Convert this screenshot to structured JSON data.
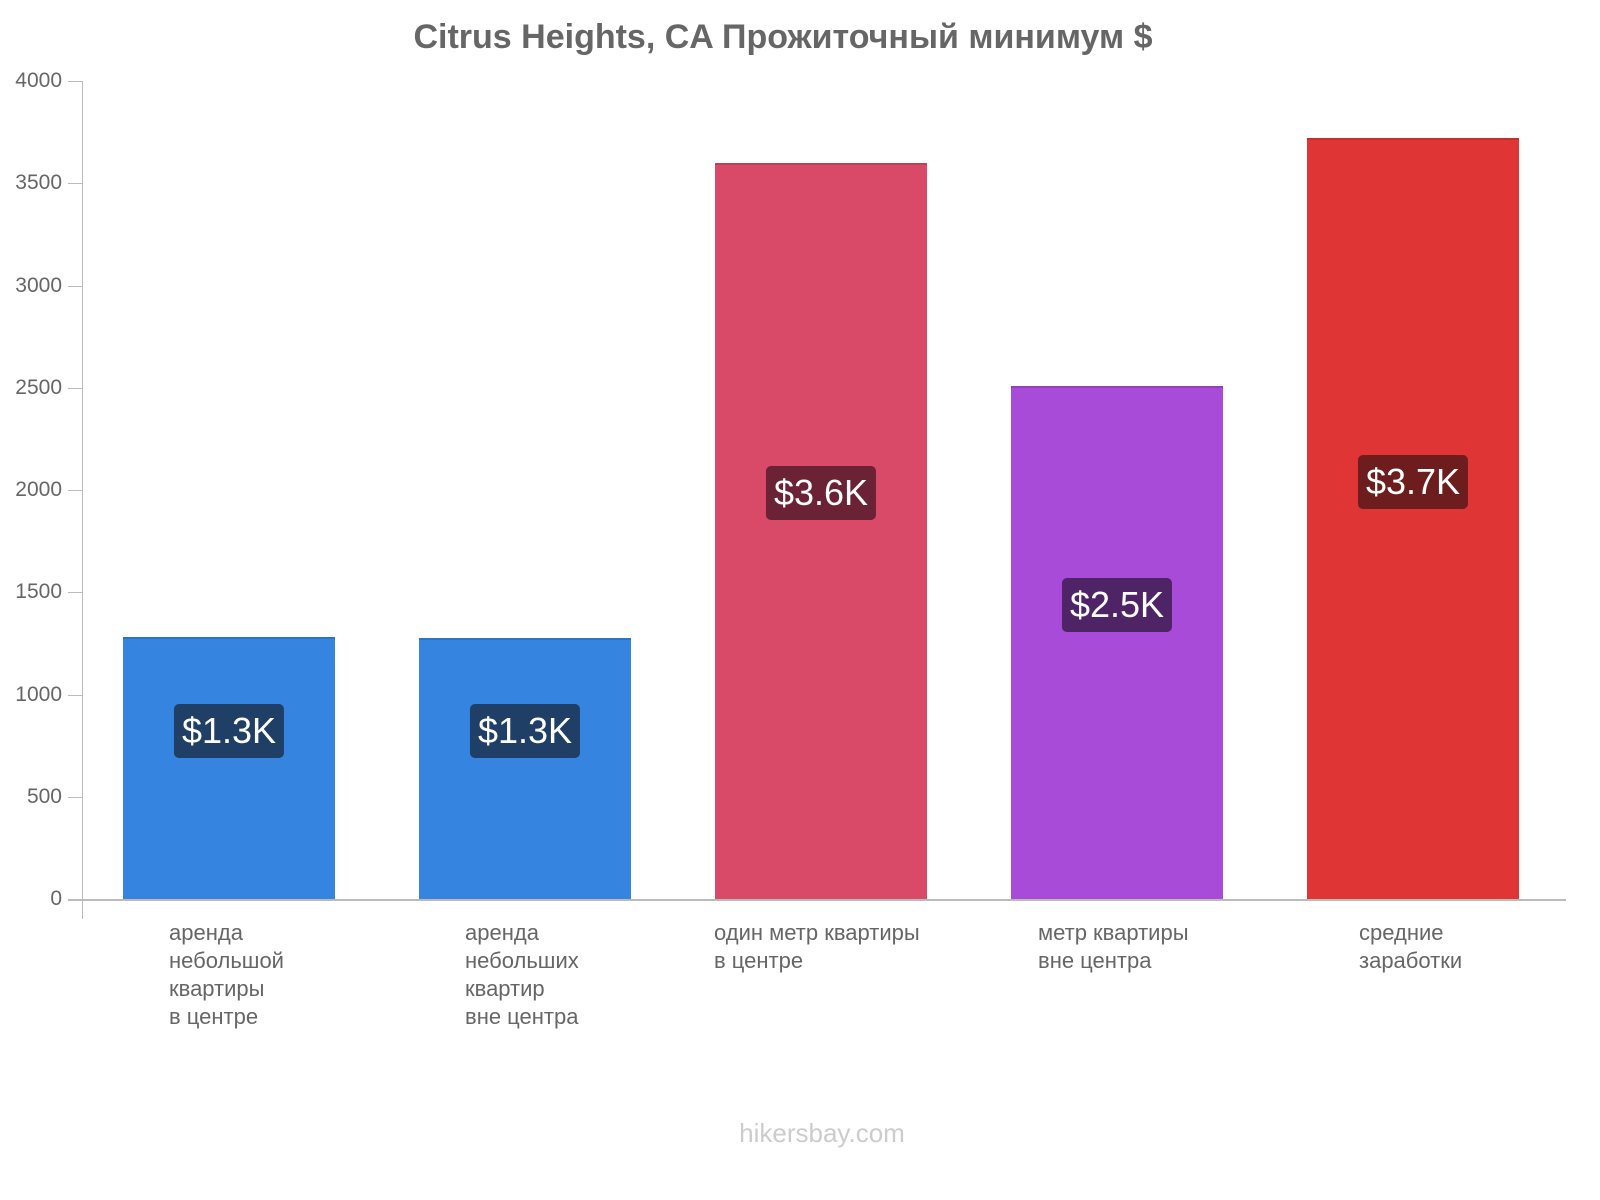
{
  "chart_data": {
    "type": "bar",
    "title": "Citrus Heights, CA Прожиточный минимум $",
    "xlabel": "",
    "ylabel": "",
    "ylim": [
      0,
      4000
    ],
    "yticks": [
      0,
      500,
      1000,
      1500,
      2000,
      2500,
      3000,
      3500,
      4000
    ],
    "grid": false,
    "legend": null,
    "categories": [
      "аренда небольшой квартиры в центре",
      "аренда небольших квартир вне центра",
      "один метр квартиры в центре",
      "метр квартиры вне центра",
      "средние заработки"
    ],
    "values": [
      1280,
      1275,
      3600,
      2510,
      3720
    ],
    "data_labels": [
      "$1.3K",
      "$1.3K",
      "$3.6K",
      "$2.5K",
      "$3.7K"
    ],
    "bar_colors": [
      "#3584e0",
      "#3584e0",
      "#d84a67",
      "#a94bd9",
      "#e03535"
    ],
    "label_bg_colors": [
      "#1f3f66",
      "#1f3f66",
      "#6b2234",
      "#4f2466",
      "#6d1d1d"
    ]
  },
  "title": "Citrus Heights, CA Прожиточный минимум $",
  "y_ticks": [
    "0",
    "500",
    "1000",
    "1500",
    "2000",
    "2500",
    "3000",
    "3500",
    "4000"
  ],
  "bars": [
    {
      "label_lines": "аренда\nнебольшой\nквартиры\nв центре",
      "value_label": "$1.3K"
    },
    {
      "label_lines": "аренда\nнебольших\nквартир\nвне центра",
      "value_label": "$1.3K"
    },
    {
      "label_lines": "один метр квартиры\nв центре",
      "value_label": "$3.6K"
    },
    {
      "label_lines": "метр квартиры\nвне центра",
      "value_label": "$2.5K"
    },
    {
      "label_lines": "средние\nзаработки",
      "value_label": "$3.7K"
    }
  ],
  "watermark": "hikersbay.com"
}
